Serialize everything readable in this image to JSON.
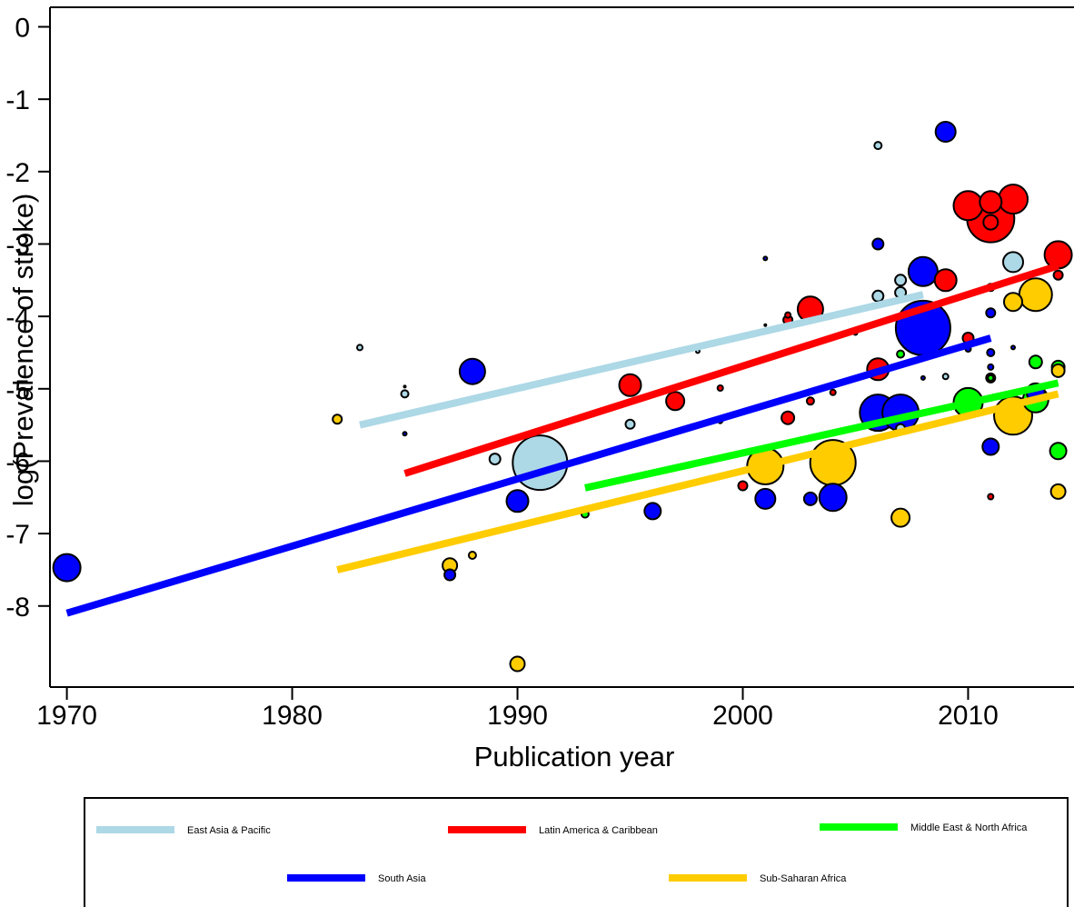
{
  "chart_data": {
    "type": "scatter",
    "xlabel": "Publication year",
    "ylabel": "log(Prevalence of stroke)",
    "xlim": [
      1969.25,
      2014.7
    ],
    "ylim": [
      -9.12,
      0.27
    ],
    "x_ticks": [
      1970,
      1980,
      1990,
      2000,
      2010
    ],
    "y_ticks": [
      0,
      -1,
      -2,
      -3,
      -4,
      -5,
      -6,
      -7,
      -8
    ],
    "grid": false,
    "legend_position": "bottom",
    "legend": [
      {
        "name": "East Asia & Pacific",
        "color": "#add8e6"
      },
      {
        "name": "Latin America & Caribbean",
        "color": "#ff0000"
      },
      {
        "name": "Middle East & North Africa",
        "color": "#00ff00"
      },
      {
        "name": "South Asia",
        "color": "#0000ff"
      },
      {
        "name": "Sub-Saharan Africa",
        "color": "#ffcc00"
      }
    ],
    "series": [
      {
        "name": "East Asia & Pacific",
        "color": "#add8e6",
        "fit": {
          "x": [
            1983,
            2008
          ],
          "y": [
            -5.5,
            -3.7
          ]
        },
        "points": [
          {
            "x": 1983,
            "y": -4.43,
            "s": 3
          },
          {
            "x": 1985,
            "y": -5.07,
            "s": 4
          },
          {
            "x": 1985,
            "y": -4.97,
            "s": 1
          },
          {
            "x": 1989,
            "y": -5.97,
            "s": 6
          },
          {
            "x": 1991,
            "y": -6.02,
            "s": 30
          },
          {
            "x": 1995,
            "y": -5.49,
            "s": 5
          },
          {
            "x": 1998,
            "y": -4.48,
            "s": 2
          },
          {
            "x": 1999,
            "y": -5.43,
            "s": 3
          },
          {
            "x": 2001,
            "y": -4.12,
            "s": 1
          },
          {
            "x": 2006,
            "y": -1.64,
            "s": 4
          },
          {
            "x": 2006,
            "y": -3.72,
            "s": 6
          },
          {
            "x": 2007,
            "y": -3.5,
            "s": 6
          },
          {
            "x": 2007,
            "y": -3.67,
            "s": 6
          },
          {
            "x": 2007,
            "y": -5.55,
            "s": 5
          },
          {
            "x": 2009,
            "y": -4.83,
            "s": 3
          },
          {
            "x": 2012,
            "y": -3.25,
            "s": 11
          }
        ]
      },
      {
        "name": "Latin America & Caribbean",
        "color": "#ff0000",
        "fit": {
          "x": [
            1985,
            2014
          ],
          "y": [
            -6.17,
            -3.3
          ]
        },
        "points": [
          {
            "x": 1995,
            "y": -4.95,
            "s": 12
          },
          {
            "x": 1997,
            "y": -5.17,
            "s": 10
          },
          {
            "x": 1999,
            "y": -4.99,
            "s": 3
          },
          {
            "x": 2000,
            "y": -6.34,
            "s": 5
          },
          {
            "x": 2002,
            "y": -5.4,
            "s": 7
          },
          {
            "x": 2002,
            "y": -4.05,
            "s": 5
          },
          {
            "x": 2002,
            "y": -3.98,
            "s": 3
          },
          {
            "x": 2003,
            "y": -3.9,
            "s": 14
          },
          {
            "x": 2003,
            "y": -5.17,
            "s": 4
          },
          {
            "x": 2004,
            "y": -5.05,
            "s": 3
          },
          {
            "x": 2006,
            "y": -4.73,
            "s": 12
          },
          {
            "x": 2009,
            "y": -3.5,
            "s": 12
          },
          {
            "x": 2010,
            "y": -2.47,
            "s": 16
          },
          {
            "x": 2010,
            "y": -4.3,
            "s": 6
          },
          {
            "x": 2011,
            "y": -2.65,
            "s": 26
          },
          {
            "x": 2011,
            "y": -2.42,
            "s": 12
          },
          {
            "x": 2011,
            "y": -2.7,
            "s": 8
          },
          {
            "x": 2011,
            "y": -3.6,
            "s": 4
          },
          {
            "x": 2011,
            "y": -4.85,
            "s": 5
          },
          {
            "x": 2011,
            "y": -6.49,
            "s": 3
          },
          {
            "x": 2012,
            "y": -2.38,
            "s": 16
          },
          {
            "x": 2014,
            "y": -3.15,
            "s": 15
          },
          {
            "x": 2014,
            "y": -3.43,
            "s": 5
          }
        ]
      },
      {
        "name": "Middle East & North Africa",
        "color": "#00ff00",
        "fit": {
          "x": [
            1993,
            2014
          ],
          "y": [
            -6.37,
            -4.92
          ]
        },
        "points": [
          {
            "x": 1993,
            "y": -6.73,
            "s": 4
          },
          {
            "x": 2007,
            "y": -4.52,
            "s": 4
          },
          {
            "x": 2010,
            "y": -5.19,
            "s": 16
          },
          {
            "x": 2011,
            "y": -4.85,
            "s": 3
          },
          {
            "x": 2013,
            "y": -5.15,
            "s": 14
          },
          {
            "x": 2013,
            "y": -4.63,
            "s": 7
          },
          {
            "x": 2014,
            "y": -4.7,
            "s": 7
          },
          {
            "x": 2014,
            "y": -5.86,
            "s": 9
          }
        ]
      },
      {
        "name": "South Asia",
        "color": "#0000ff",
        "fit": {
          "x": [
            1970,
            2011
          ],
          "y": [
            -8.1,
            -4.3
          ]
        },
        "points": [
          {
            "x": 1970,
            "y": -7.47,
            "s": 15
          },
          {
            "x": 1985,
            "y": -5.62,
            "s": 2
          },
          {
            "x": 1987,
            "y": -7.57,
            "s": 6
          },
          {
            "x": 1988,
            "y": -4.76,
            "s": 14
          },
          {
            "x": 1990,
            "y": -6.55,
            "s": 12
          },
          {
            "x": 1996,
            "y": -6.69,
            "s": 9
          },
          {
            "x": 1999,
            "y": -5.45,
            "s": 2
          },
          {
            "x": 2001,
            "y": -3.2,
            "s": 2
          },
          {
            "x": 2001,
            "y": -6.52,
            "s": 11
          },
          {
            "x": 2003,
            "y": -6.52,
            "s": 7
          },
          {
            "x": 2004,
            "y": -6.5,
            "s": 15
          },
          {
            "x": 2005,
            "y": -4.23,
            "s": 2
          },
          {
            "x": 2006,
            "y": -5.33,
            "s": 20
          },
          {
            "x": 2006,
            "y": -3.0,
            "s": 6
          },
          {
            "x": 2007,
            "y": -5.33,
            "s": 20
          },
          {
            "x": 2008,
            "y": -3.38,
            "s": 16
          },
          {
            "x": 2008,
            "y": -4.16,
            "s": 30
          },
          {
            "x": 2008,
            "y": -4.85,
            "s": 2
          },
          {
            "x": 2009,
            "y": -1.45,
            "s": 11
          },
          {
            "x": 2010,
            "y": -4.45,
            "s": 3
          },
          {
            "x": 2011,
            "y": -3.95,
            "s": 5
          },
          {
            "x": 2011,
            "y": -4.5,
            "s": 4
          },
          {
            "x": 2011,
            "y": -4.7,
            "s": 3
          },
          {
            "x": 2011,
            "y": -5.8,
            "s": 9
          },
          {
            "x": 2012,
            "y": -4.43,
            "s": 2
          },
          {
            "x": 2013,
            "y": -5.05,
            "s": 10
          }
        ]
      },
      {
        "name": "Sub-Saharan Africa",
        "color": "#ffcc00",
        "fit": {
          "x": [
            1982,
            2014
          ],
          "y": [
            -7.5,
            -5.07
          ]
        },
        "points": [
          {
            "x": 1982,
            "y": -5.42,
            "s": 5
          },
          {
            "x": 1987,
            "y": -7.44,
            "s": 8
          },
          {
            "x": 1988,
            "y": -7.3,
            "s": 4
          },
          {
            "x": 1990,
            "y": -8.8,
            "s": 8
          },
          {
            "x": 2001,
            "y": -6.07,
            "s": 20
          },
          {
            "x": 2004,
            "y": -6.02,
            "s": 25
          },
          {
            "x": 2007,
            "y": -6.78,
            "s": 10
          },
          {
            "x": 2012,
            "y": -5.37,
            "s": 21
          },
          {
            "x": 2012,
            "y": -3.8,
            "s": 10
          },
          {
            "x": 2013,
            "y": -3.7,
            "s": 18
          },
          {
            "x": 2014,
            "y": -6.42,
            "s": 8
          },
          {
            "x": 2014,
            "y": -4.75,
            "s": 7
          }
        ]
      }
    ]
  }
}
